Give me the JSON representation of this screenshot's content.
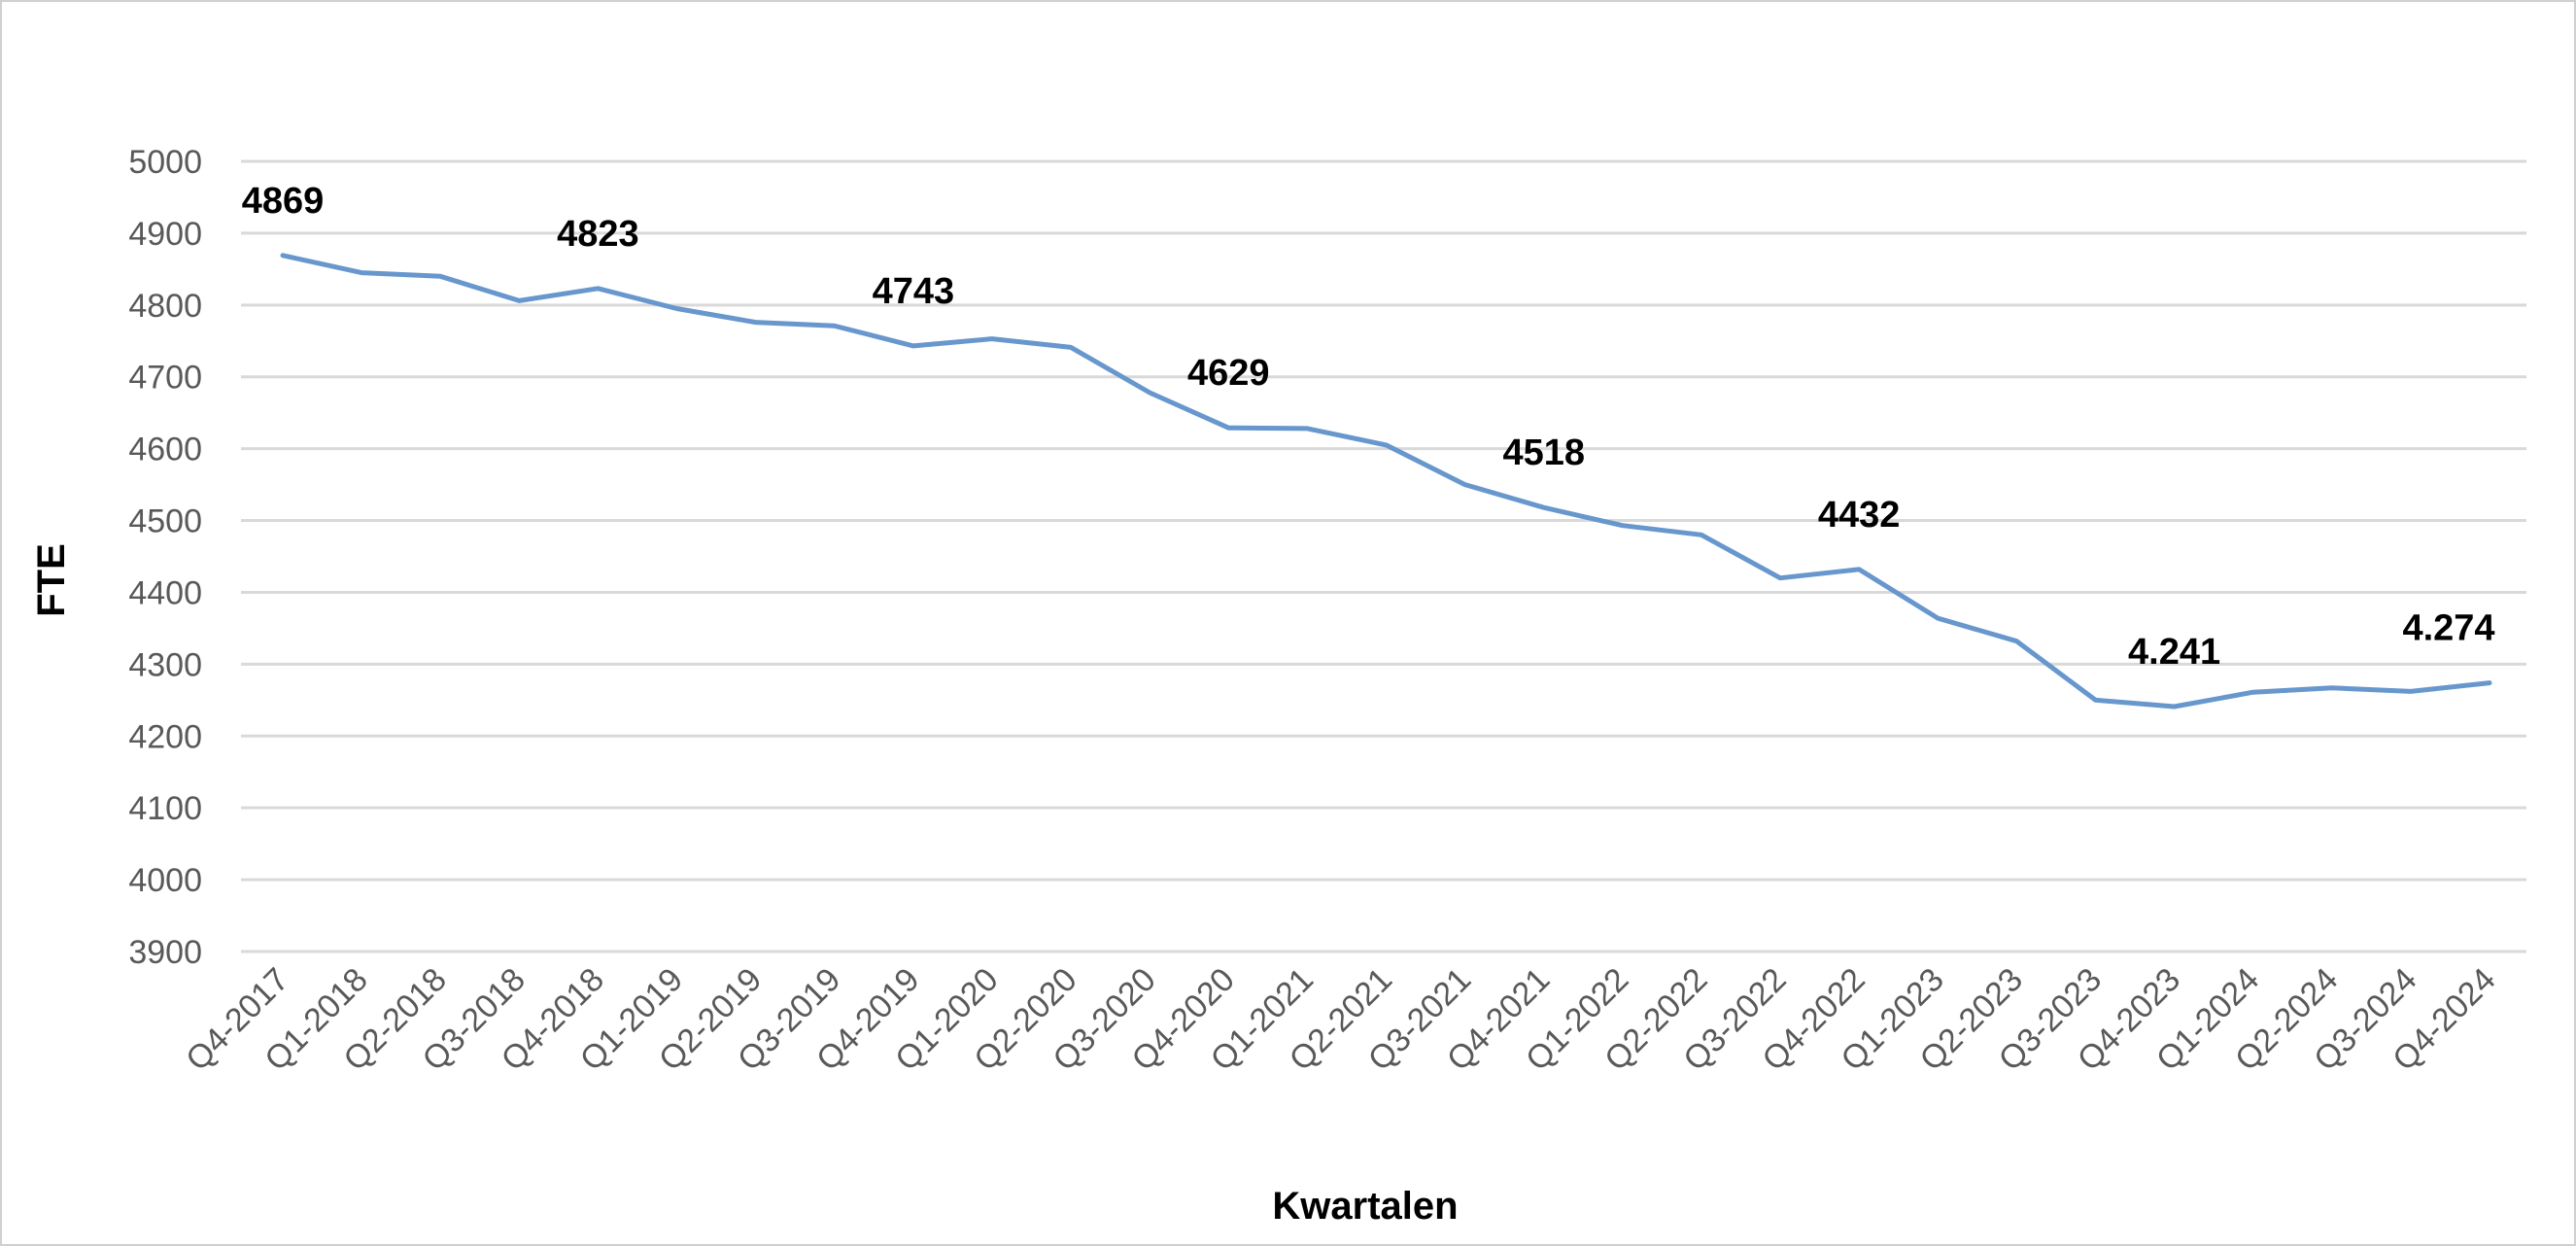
{
  "chart_data": {
    "type": "line",
    "title": "",
    "xlabel": "Kwartalen",
    "ylabel": "FTE",
    "ylim": [
      3900,
      5000
    ],
    "yticks": [
      3900,
      4000,
      4100,
      4200,
      4300,
      4400,
      4500,
      4600,
      4700,
      4800,
      4900,
      5000
    ],
    "grid": true,
    "legend": "none",
    "color": "#6797cd",
    "categories": [
      "Q4-2017",
      "Q1-2018",
      "Q2-2018",
      "Q3-2018",
      "Q4-2018",
      "Q1-2019",
      "Q2-2019",
      "Q3-2019",
      "Q4-2019",
      "Q1-2020",
      "Q2-2020",
      "Q3-2020",
      "Q4-2020",
      "Q1-2021",
      "Q2-2021",
      "Q3-2021",
      "Q4-2021",
      "Q1-2022",
      "Q2-2022",
      "Q3-2022",
      "Q4-2022",
      "Q1-2023",
      "Q2-2023",
      "Q3-2023",
      "Q4-2023",
      "Q1-2024",
      "Q2-2024",
      "Q3-2024",
      "Q4-2024"
    ],
    "series": [
      {
        "values": [
          4869,
          4845,
          4840,
          4806,
          4823,
          4795,
          4776,
          4771,
          4743,
          4753,
          4741,
          4678,
          4629,
          4628,
          4605,
          4550,
          4518,
          4493,
          4480,
          4420,
          4432,
          4364,
          4332,
          4250,
          4241,
          4261,
          4267,
          4262,
          4274
        ]
      }
    ],
    "data_labels": [
      {
        "index": 0,
        "text": "4869"
      },
      {
        "index": 4,
        "text": "4823"
      },
      {
        "index": 8,
        "text": "4743"
      },
      {
        "index": 12,
        "text": "4629"
      },
      {
        "index": 16,
        "text": "4518"
      },
      {
        "index": 20,
        "text": "4432"
      },
      {
        "index": 24,
        "text": "4.241"
      },
      {
        "index": 28,
        "text": "4.274"
      }
    ]
  }
}
